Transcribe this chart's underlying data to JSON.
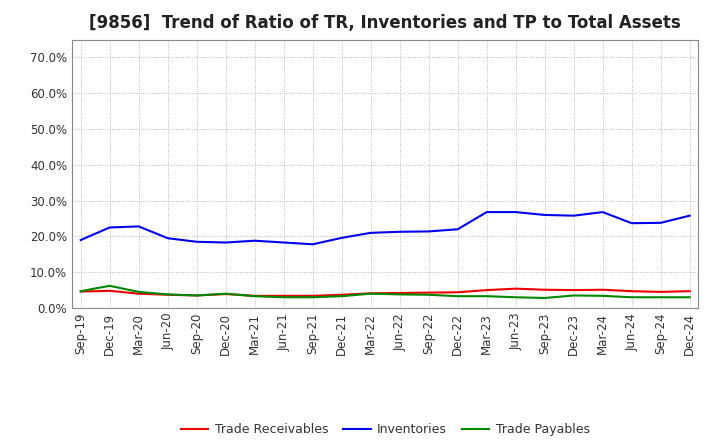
{
  "title": "[9856]  Trend of Ratio of TR, Inventories and TP to Total Assets",
  "ylim": [
    0.0,
    0.75
  ],
  "yticks": [
    0.0,
    0.1,
    0.2,
    0.3,
    0.4,
    0.5,
    0.6,
    0.7
  ],
  "x_labels": [
    "Sep-19",
    "Dec-19",
    "Mar-20",
    "Jun-20",
    "Sep-20",
    "Dec-20",
    "Mar-21",
    "Jun-21",
    "Sep-21",
    "Dec-21",
    "Mar-22",
    "Jun-22",
    "Sep-22",
    "Dec-22",
    "Mar-23",
    "Jun-23",
    "Sep-23",
    "Dec-23",
    "Mar-24",
    "Jun-24",
    "Sep-24",
    "Dec-24"
  ],
  "trade_receivables": [
    0.046,
    0.048,
    0.04,
    0.037,
    0.035,
    0.039,
    0.034,
    0.034,
    0.034,
    0.037,
    0.041,
    0.042,
    0.043,
    0.044,
    0.05,
    0.054,
    0.051,
    0.05,
    0.051,
    0.047,
    0.045,
    0.047
  ],
  "inventories": [
    0.19,
    0.225,
    0.228,
    0.195,
    0.185,
    0.183,
    0.188,
    0.183,
    0.178,
    0.196,
    0.21,
    0.213,
    0.214,
    0.22,
    0.268,
    0.268,
    0.26,
    0.258,
    0.268,
    0.237,
    0.238,
    0.258
  ],
  "trade_payables": [
    0.047,
    0.062,
    0.045,
    0.038,
    0.035,
    0.04,
    0.033,
    0.03,
    0.03,
    0.033,
    0.04,
    0.038,
    0.037,
    0.033,
    0.033,
    0.03,
    0.028,
    0.035,
    0.034,
    0.03,
    0.03,
    0.03
  ],
  "line_color_tr": "#EE0000",
  "line_color_inv": "#0000EE",
  "line_color_tp": "#008800",
  "line_width": 1.5,
  "background_color": "#FFFFFF",
  "grid_color": "#999999",
  "title_fontsize": 12,
  "tick_fontsize": 8.5,
  "legend_labels": [
    "Trade Receivables",
    "Inventories",
    "Trade Payables"
  ]
}
